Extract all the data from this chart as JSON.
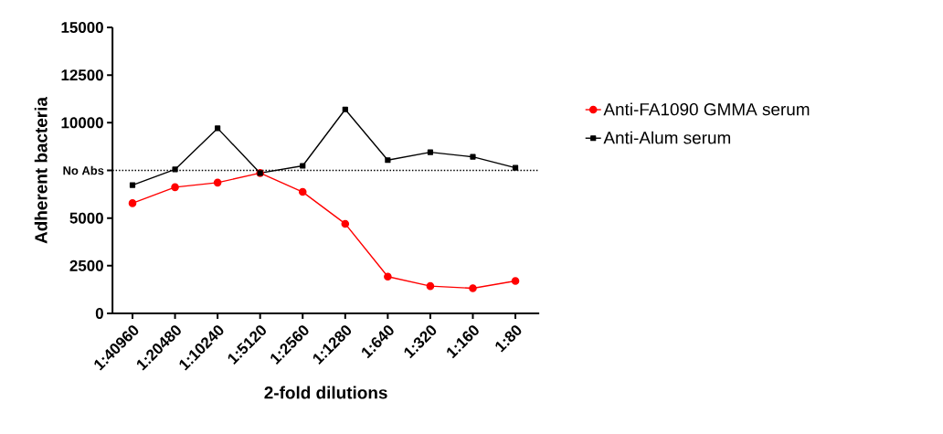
{
  "chart_data": {
    "type": "line",
    "xlabel": "2-fold dilutions",
    "ylabel": "Adherent bacteria",
    "categories": [
      "1:40960",
      "1:20480",
      "1:10240",
      "1:5120",
      "1:2560",
      "1:1280",
      "1:640",
      "1:320",
      "1:160",
      "1:80"
    ],
    "series": [
      {
        "name": "Anti-FA1090 GMMA serum",
        "color": "#ff0000",
        "marker": "circle",
        "values": [
          5780,
          6620,
          6860,
          7360,
          6370,
          4700,
          1930,
          1430,
          1320,
          1700
        ]
      },
      {
        "name": "Anti-Alum serum",
        "color": "#000000",
        "marker": "square",
        "values": [
          6730,
          7550,
          9710,
          7360,
          7740,
          10700,
          8040,
          8450,
          8210,
          7640
        ]
      }
    ],
    "ylim": [
      0,
      15000
    ],
    "yticks": [
      0,
      2500,
      5000,
      {
        "value": 7500,
        "label": null
      },
      10000,
      12500,
      15000
    ],
    "ref_lines": [
      {
        "axis": "y",
        "value": 7500,
        "label": "No Abs",
        "line_style": "dotted"
      }
    ],
    "legend": "right",
    "grid": false,
    "line_style": "solid"
  }
}
